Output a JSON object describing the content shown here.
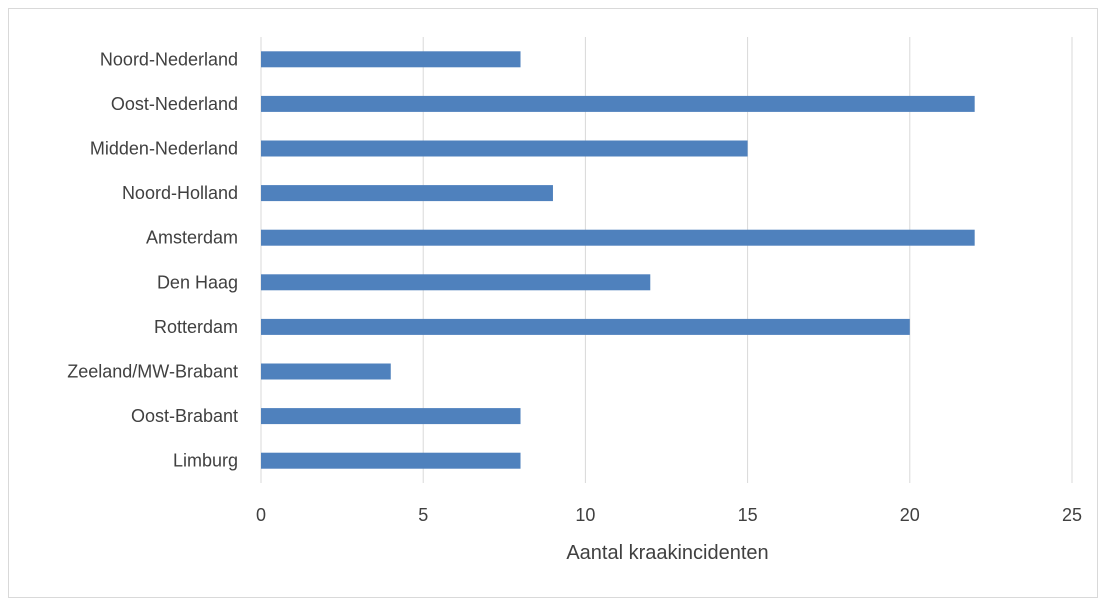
{
  "chart_data": {
    "type": "bar",
    "orientation": "horizontal",
    "title": "",
    "categories": [
      "Noord-Nederland",
      "Oost-Nederland",
      "Midden-Nederland",
      "Noord-Holland",
      "Amsterdam",
      "Den Haag",
      "Rotterdam",
      "Zeeland/MW-Brabant",
      "Oost-Brabant",
      "Limburg"
    ],
    "values": [
      8,
      22,
      15,
      9,
      22,
      12,
      20,
      4,
      8,
      8
    ],
    "xlabel": "Aantal kraakincidenten",
    "ylabel": "",
    "xlim": [
      0,
      25
    ],
    "xticks": [
      0,
      5,
      10,
      15,
      20,
      25
    ],
    "grid": "vertical",
    "bar_color": "#4f81bd",
    "grid_color": "#d9d9d9"
  }
}
